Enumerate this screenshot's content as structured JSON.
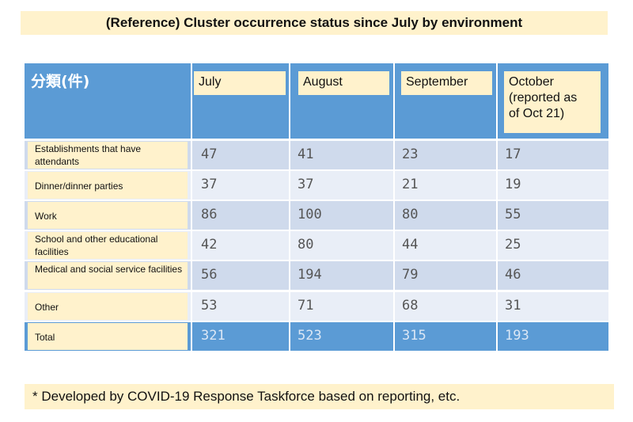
{
  "title": "(Reference) Cluster occurrence status since July by environment",
  "table": {
    "category_header": "分類(件)",
    "months": [
      "July",
      "August",
      "September",
      "October\n(reported as\nof Oct 21)"
    ],
    "rows": [
      {
        "label": "Establishments that have attendants",
        "values": [
          "47",
          "41",
          "23",
          "17"
        ]
      },
      {
        "label": "Dinner/dinner parties",
        "values": [
          "37",
          "37",
          "21",
          "19"
        ]
      },
      {
        "label": "Work",
        "values": [
          "86",
          "100",
          "80",
          "55"
        ]
      },
      {
        "label": "School and other educational facilities",
        "values": [
          "42",
          "80",
          "44",
          "25"
        ]
      },
      {
        "label": "Medical and social service facilities",
        "values": [
          "56",
          "194",
          "79",
          "46"
        ]
      },
      {
        "label": "Other",
        "values": [
          "53",
          "71",
          "68",
          "31"
        ]
      },
      {
        "label": "Total",
        "values": [
          "321",
          "523",
          "315",
          "193"
        ]
      }
    ]
  },
  "footnote": "* Developed by COVID-19 Response Taskforce based on reporting, etc.",
  "colors": {
    "header_blue": "#5b9bd5",
    "row_dark": "#cfdaec",
    "row_light": "#e9eef7",
    "label_bg": "#fff2cc"
  }
}
